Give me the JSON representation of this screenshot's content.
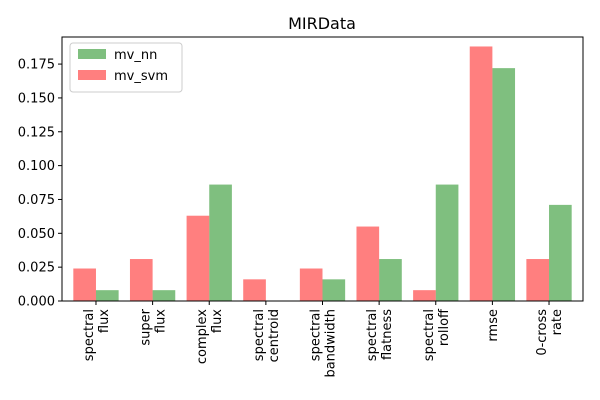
{
  "chart_data": {
    "type": "bar",
    "title": "MIRData",
    "xlabel": "",
    "ylabel": "",
    "ylim": [
      0,
      0.195
    ],
    "yticks": [
      "0.000",
      "0.025",
      "0.050",
      "0.075",
      "0.100",
      "0.125",
      "0.150",
      "0.175"
    ],
    "categories": [
      "spectral\nflux",
      "super\nflux",
      "complex\nflux",
      "spectral\ncentroid",
      "spectral\nbandwidth",
      "spectral\nflatness",
      "spectral\nrolloff",
      "rmse",
      "0-cross\nrate"
    ],
    "series": [
      {
        "name": "mv_nn",
        "color": "#008000",
        "alpha": 0.5,
        "values": [
          0.008,
          0.008,
          0.086,
          0.0,
          0.016,
          0.031,
          0.086,
          0.172,
          0.071
        ]
      },
      {
        "name": "mv_svm",
        "color": "#ff0000",
        "alpha": 0.5,
        "values": [
          0.024,
          0.031,
          0.063,
          0.016,
          0.024,
          0.055,
          0.008,
          0.188,
          0.031
        ]
      }
    ],
    "legend": "top-left",
    "grid": false
  }
}
